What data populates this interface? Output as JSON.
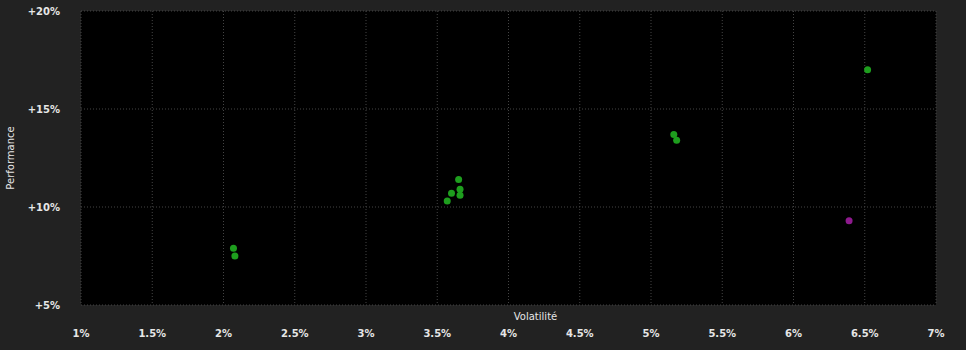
{
  "chart_data": {
    "type": "scatter",
    "x_label": "Volatilité",
    "y_label": "Performance",
    "series": [
      {
        "x": [
          2.07,
          2.08,
          3.57,
          3.6,
          3.65,
          3.66,
          3.66,
          5.16,
          5.18,
          6.52,
          6.39
        ],
        "values": [
          7.9,
          7.5,
          10.3,
          10.7,
          11.4,
          10.9,
          10.6,
          13.7,
          13.4,
          17.0,
          9.3
        ],
        "colors": [
          "#1e9e1e",
          "#1e9e1e",
          "#1e9e1e",
          "#1e9e1e",
          "#1e9e1e",
          "#1e9e1e",
          "#1e9e1e",
          "#1e9e1e",
          "#1e9e1e",
          "#1e9e1e",
          "#8e1a8e"
        ],
        "marker": "circle"
      }
    ],
    "xlim": [
      1,
      7
    ],
    "xticks": [
      {
        "value": 1,
        "label": "1%"
      },
      {
        "value": 1.5,
        "label": "1.5%"
      },
      {
        "value": 2,
        "label": "2%"
      },
      {
        "value": 2.5,
        "label": "2.5%"
      },
      {
        "value": 3,
        "label": "3%"
      },
      {
        "value": 3.5,
        "label": "3.5%"
      },
      {
        "value": 4,
        "label": "4%"
      },
      {
        "value": 4.5,
        "label": "4.5%"
      },
      {
        "value": 5,
        "label": "5%"
      },
      {
        "value": 5.5,
        "label": "5.5%"
      },
      {
        "value": 6,
        "label": "6%"
      },
      {
        "value": 6.5,
        "label": "6.5%"
      },
      {
        "value": 7,
        "label": "7%"
      }
    ],
    "ylim": [
      5,
      20
    ],
    "yticks": [
      {
        "value": 5,
        "label": "+5%"
      },
      {
        "value": 10,
        "label": "+10%"
      },
      {
        "value": 15,
        "label": "+15%"
      },
      {
        "value": 20,
        "label": "+20%"
      }
    ],
    "grid": true
  }
}
